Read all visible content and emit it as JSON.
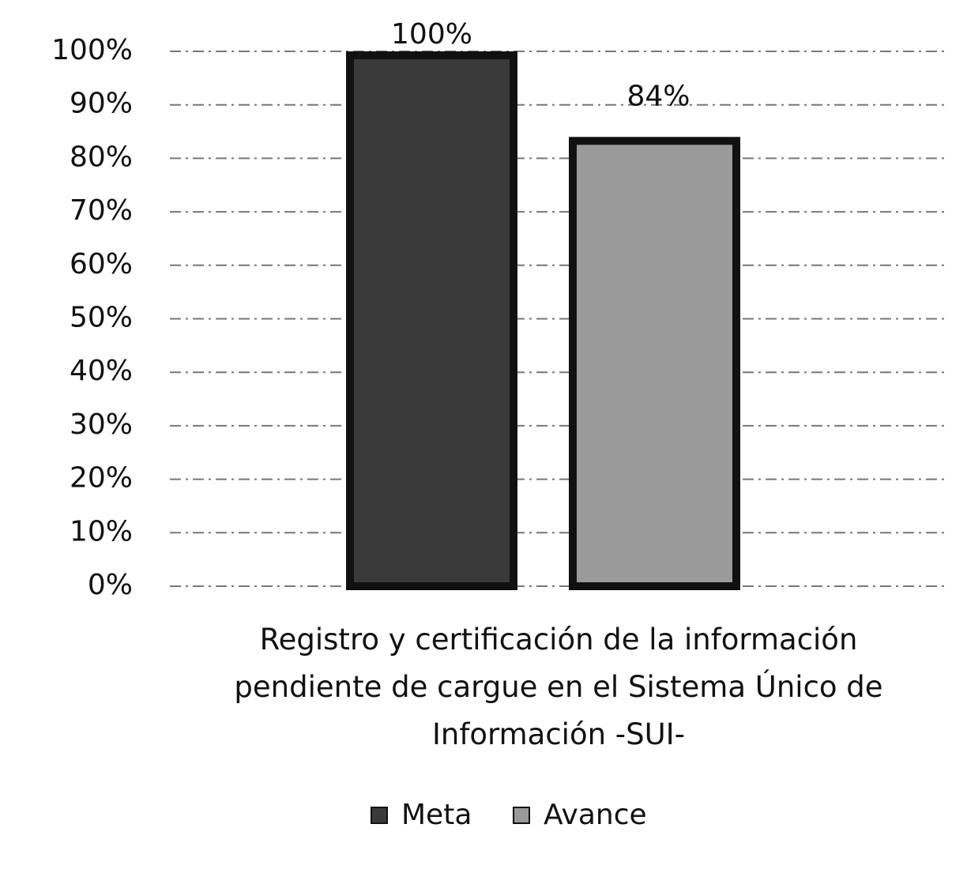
{
  "chart_data": {
    "type": "bar",
    "categories": [
      "Registro y certificación de la información pendiente de cargue en el Sistema Único de Información -SUI-"
    ],
    "series": [
      {
        "name": "Meta",
        "color": "#3a3a3a",
        "values": [
          100
        ],
        "value_labels": [
          "100%"
        ]
      },
      {
        "name": "Avance",
        "color": "#9a9a9a",
        "values": [
          84
        ],
        "value_labels": [
          "84%"
        ]
      }
    ],
    "ylim": [
      0,
      100
    ],
    "yticks": [
      {
        "value": 0,
        "label": "0%"
      },
      {
        "value": 10,
        "label": "10%"
      },
      {
        "value": 20,
        "label": "20%"
      },
      {
        "value": 30,
        "label": "30%"
      },
      {
        "value": 40,
        "label": "40%"
      },
      {
        "value": 50,
        "label": "50%"
      },
      {
        "value": 60,
        "label": "60%"
      },
      {
        "value": 70,
        "label": "70%"
      },
      {
        "value": 80,
        "label": "80%"
      },
      {
        "value": 90,
        "label": "90%"
      },
      {
        "value": 100,
        "label": "100%"
      }
    ],
    "grid": true,
    "legend": "bottom"
  }
}
